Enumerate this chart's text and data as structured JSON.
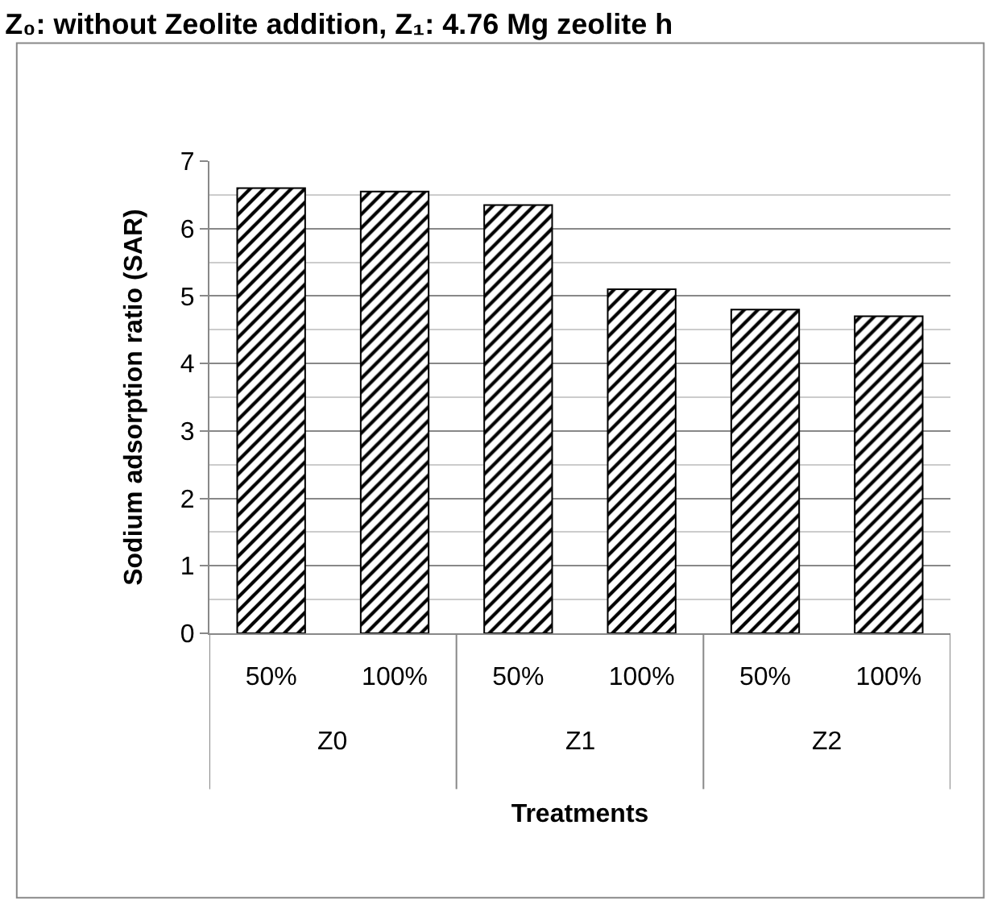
{
  "chart_data": {
    "type": "bar",
    "title": "Z₀: without Zeolite addition, Z₁: 4.76 Mg zeolite h",
    "categories": [
      "50%",
      "100%",
      "50%",
      "100%",
      "50%",
      "100%"
    ],
    "values": [
      6.6,
      6.55,
      6.35,
      5.1,
      4.8,
      4.7
    ],
    "color": "#000000",
    "ylabel": "Sodium adsorption ratio (SAR)",
    "xlabel": "Treatments",
    "annotations": [
      "Z0",
      "Z1",
      "Z2"
    ],
    "ylim": [
      0,
      7
    ],
    "yticks": [
      0,
      1,
      2,
      3,
      4,
      5,
      6,
      7
    ],
    "grid": "y"
  }
}
